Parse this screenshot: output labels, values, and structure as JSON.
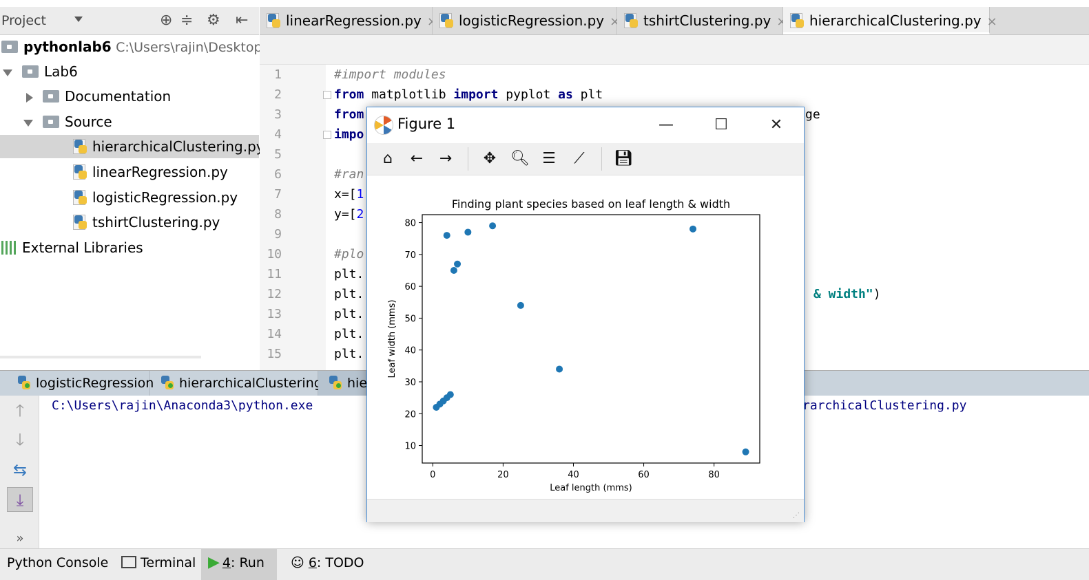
{
  "project_panel": {
    "title": "Project",
    "root_name": "pythonlab6",
    "root_path": "C:\\Users\\rajin\\Desktop\\p",
    "tree": [
      {
        "label": "Lab6"
      },
      {
        "label": "Documentation"
      },
      {
        "label": "Source"
      },
      {
        "label": "hierarchicalClustering.py"
      },
      {
        "label": "linearRegression.py"
      },
      {
        "label": "logisticRegression.py"
      },
      {
        "label": "tshirtClustering.py"
      },
      {
        "label": "External Libraries"
      }
    ]
  },
  "editor_tabs": [
    {
      "label": "linearRegression.py",
      "close": "×"
    },
    {
      "label": "logisticRegression.py",
      "close": "×"
    },
    {
      "label": "tshirtClustering.py",
      "close": "×"
    },
    {
      "label": "hierarchicalClustering.py",
      "close": "×"
    }
  ],
  "editor": {
    "line_numbers": [
      "1",
      "2",
      "3",
      "4",
      "5",
      "6",
      "7",
      "8",
      "9",
      "10",
      "11",
      "12",
      "13",
      "14",
      "15"
    ],
    "lines": {
      "l1": "#import modules",
      "l2_kw1": "from",
      "l2_mid": " matplotlib ",
      "l2_kw2": "import",
      "l2_mid2": " pyplot ",
      "l2_kw3": "as",
      "l2_end": " plt",
      "l3_kw": "from",
      "l3_tail": "ge",
      "l4_kw": "impo",
      "l6": "#ran",
      "l7_a": "x=[",
      "l7_b": "1",
      "l8_a": "y=[",
      "l8_b": "2",
      "l10": "#plo",
      "l11": "plt.",
      "l12": "plt.",
      "l12_str": "& width\"",
      "l12_end": ")",
      "l13": "plt.",
      "l14": "plt.",
      "l15": "plt."
    }
  },
  "run_tabs": [
    {
      "label": "logisticRegression"
    },
    {
      "label": "hierarchicalClustering"
    },
    {
      "label": "hie"
    }
  ],
  "console": {
    "line_start": "C:\\Users\\rajin\\Anaconda3\\python.exe",
    "line_end": "rarchicalClustering.py"
  },
  "bottom_bar": [
    {
      "label": "Python Console"
    },
    {
      "key": "4",
      "label": ": Run"
    },
    {
      "key": "6",
      "label": ": TODO"
    },
    {
      "label": "Terminal"
    }
  ],
  "figure": {
    "title": "Figure 1",
    "controls": {
      "minimize": "—",
      "maximize": "☐",
      "close": "✕"
    }
  },
  "chart_data": {
    "type": "scatter",
    "title": "Finding plant species based on leaf length & width",
    "xlabel": "Leaf length (mms)",
    "ylabel": "Leaf width (mms)",
    "xlim": [
      -3,
      93
    ],
    "ylim": [
      4.5,
      82.5
    ],
    "xticks": [
      0,
      20,
      40,
      60,
      80
    ],
    "yticks": [
      10,
      20,
      30,
      40,
      50,
      60,
      70,
      80
    ],
    "color": "#1f77b4",
    "points": [
      {
        "x": 1,
        "y": 22
      },
      {
        "x": 2,
        "y": 23
      },
      {
        "x": 3,
        "y": 24
      },
      {
        "x": 4,
        "y": 25
      },
      {
        "x": 5,
        "y": 26
      },
      {
        "x": 4,
        "y": 76
      },
      {
        "x": 6,
        "y": 65
      },
      {
        "x": 7,
        "y": 67
      },
      {
        "x": 10,
        "y": 77
      },
      {
        "x": 17,
        "y": 79
      },
      {
        "x": 25,
        "y": 54
      },
      {
        "x": 36,
        "y": 34
      },
      {
        "x": 74,
        "y": 78
      },
      {
        "x": 89,
        "y": 8
      }
    ]
  }
}
